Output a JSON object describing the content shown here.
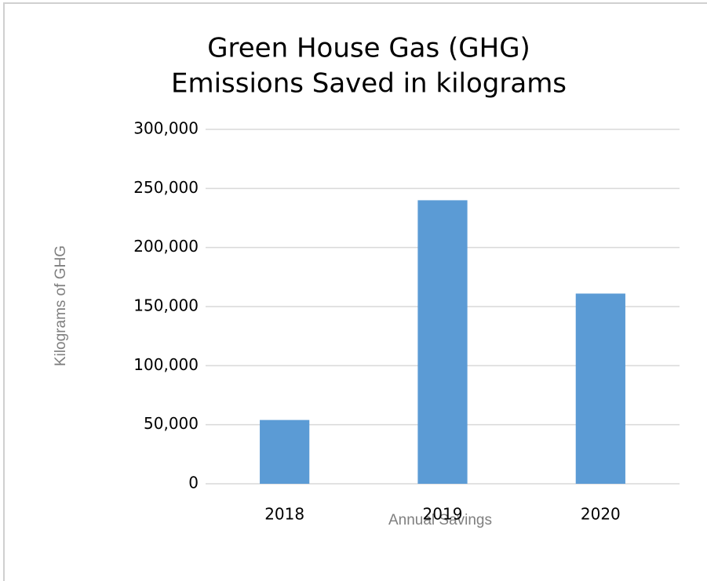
{
  "chart_data": {
    "type": "bar",
    "title": [
      "Green House Gas (GHG)",
      "Emissions Saved in kilograms"
    ],
    "x_label": "Annual Savings",
    "y_label": "Kilograms of GHG",
    "categories": [
      "2018",
      "2019",
      "2020"
    ],
    "values": [
      54000,
      240000,
      161000
    ],
    "color": "#5b9bd5",
    "ylim": [
      0,
      300000
    ],
    "yticks": [
      0,
      {
        "value": 50000,
        "label": "50,000"
      },
      {
        "value": 100000,
        "label": "100,000"
      },
      {
        "value": 150000,
        "label": "150,000"
      },
      {
        "value": 200000,
        "label": "200,000"
      },
      {
        "value": 250000,
        "label": "250,000"
      },
      {
        "value": 300000,
        "label": "300,000"
      }
    ],
    "grid": true
  }
}
